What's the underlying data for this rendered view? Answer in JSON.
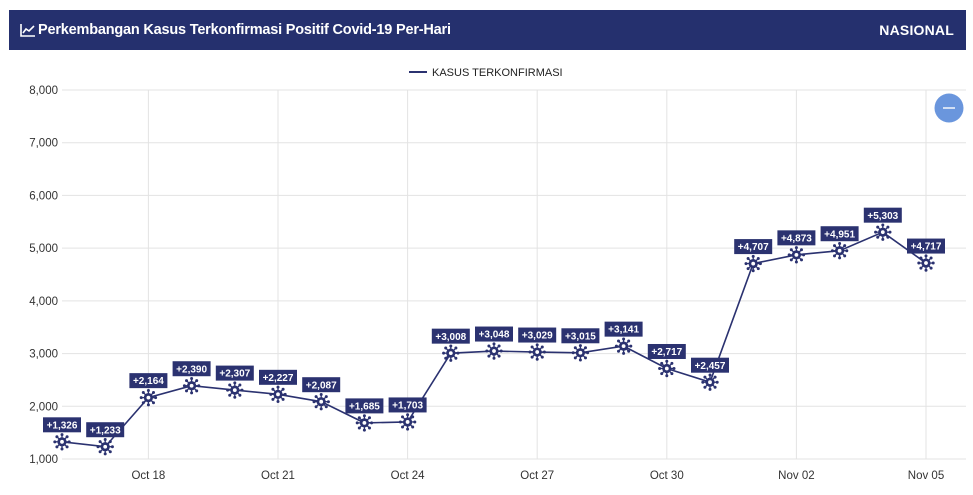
{
  "header": {
    "title": "Perkembangan Kasus Terkonfirmasi Positif Covid-19 Per-Hari",
    "region": "NASIONAL",
    "icon": "line-chart-icon"
  },
  "zoom_button": {
    "icon": "minus-icon",
    "color": "#6a96dd"
  },
  "colors": {
    "header_bg": "#25306e",
    "series": "#2b3270",
    "label_bg": "#2b3270",
    "grid": "#e3e3e3"
  },
  "chart_data": {
    "type": "line",
    "title": "",
    "xlabel": "",
    "ylabel": "",
    "ylim": [
      1000,
      8000
    ],
    "yticks": [
      1000,
      2000,
      3000,
      4000,
      5000,
      6000,
      7000,
      8000
    ],
    "ytick_labels": [
      "1,000",
      "2,000",
      "3,000",
      "4,000",
      "5,000",
      "6,000",
      "7,000",
      "8,000"
    ],
    "xtick_labels": [
      {
        "label": "Oct 18",
        "day": 2
      },
      {
        "label": "Oct 21",
        "day": 5
      },
      {
        "label": "Oct 24",
        "day": 8
      },
      {
        "label": "Oct 27",
        "day": 11
      },
      {
        "label": "Oct 30",
        "day": 14
      },
      {
        "label": "Nov 02",
        "day": 17
      },
      {
        "label": "Nov 05",
        "day": 20
      }
    ],
    "grid": true,
    "legend_position": "top-center",
    "series": [
      {
        "name": "KASUS TERKONFIRMASI",
        "marker": "virus-icon",
        "x": [
          "Oct 16",
          "Oct 17",
          "Oct 18",
          "Oct 19",
          "Oct 20",
          "Oct 21",
          "Oct 22",
          "Oct 23",
          "Oct 24",
          "Oct 25",
          "Oct 26",
          "Oct 27",
          "Oct 28",
          "Oct 29",
          "Oct 30",
          "Oct 31",
          "Nov 01",
          "Nov 02",
          "Nov 03",
          "Nov 04",
          "Nov 05"
        ],
        "values": [
          1326,
          1233,
          2164,
          2390,
          2307,
          2227,
          2087,
          1685,
          1703,
          3008,
          3048,
          3029,
          3015,
          3141,
          2717,
          2457,
          4707,
          4873,
          4951,
          5303,
          4717
        ],
        "labels": [
          "+1,326",
          "+1,233",
          "+2,164",
          "+2,390",
          "+2,307",
          "+2,227",
          "+2,087",
          "+1,685",
          "+1,703",
          "+3,008",
          "+3,048",
          "+3,029",
          "+3,015",
          "+3,141",
          "+2,717",
          "+2,457",
          "+4,707",
          "+4,873",
          "+4,951",
          "+5,303",
          "+4,717"
        ]
      }
    ]
  }
}
